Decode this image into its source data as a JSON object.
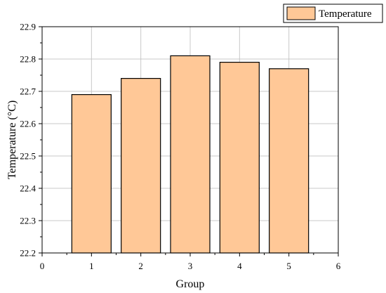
{
  "chart_data": {
    "type": "bar",
    "categories": [
      "1",
      "2",
      "3",
      "4",
      "5"
    ],
    "x": [
      1,
      2,
      3,
      4,
      5
    ],
    "series": [
      {
        "name": "Temperature",
        "values": [
          22.69,
          22.74,
          22.81,
          22.79,
          22.77
        ]
      }
    ],
    "xlabel": "Group",
    "ylabel": "Temperature (°C)",
    "xlim": [
      0,
      6
    ],
    "ylim": [
      22.2,
      22.9
    ],
    "xticks": [
      "0",
      "1",
      "2",
      "3",
      "4",
      "5",
      "6"
    ],
    "yticks": [
      "22.2",
      "22.3",
      "22.4",
      "22.5",
      "22.6",
      "22.7",
      "22.8",
      "22.9"
    ],
    "grid": true,
    "legend_position": "top-right",
    "colors": {
      "bar_fill": "#FFC897",
      "bar_stroke": "#000000",
      "grid": "#c8c8c8",
      "axis": "#000000"
    }
  }
}
